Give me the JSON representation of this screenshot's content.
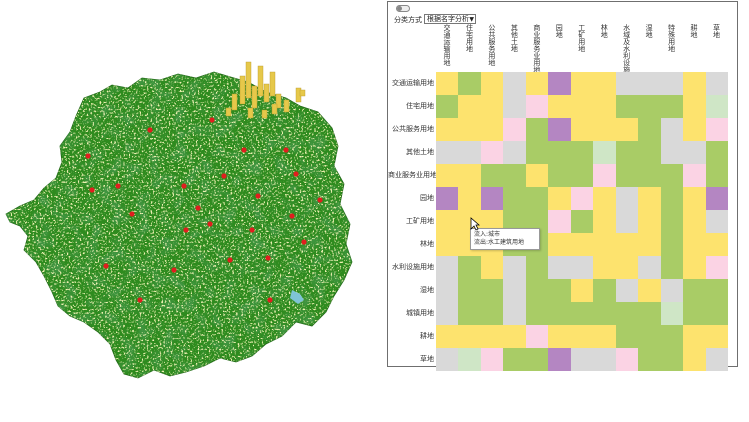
{
  "panel": {
    "classify_label": "分类方式",
    "classify_value": "根据名字分析",
    "columns": [
      "交通运输用地",
      "住宅用地",
      "公共服务用地",
      "其他土地",
      "商业服务业用地",
      "园地",
      "工矿用地",
      "林地",
      "水域及水利设施",
      "湿地",
      "特殊用地",
      "耕地",
      "草地"
    ],
    "rows": [
      "交通运输用地",
      "住宅用地",
      "公共服务用地",
      "其他土地",
      "商业服务业用地",
      "园地",
      "工矿用地",
      "林地",
      "水利设施用地",
      "湿地",
      "城镇用地",
      "耕地",
      "草地"
    ],
    "colors": {
      "yellow": "#fde36e",
      "green": "#a9cc66",
      "gray": "#d9d9d9",
      "pink": "#fbd3e4",
      "purple": "#b486c2",
      "mint": "#cfe6c6",
      "white": "#ffffff"
    },
    "matrix": [
      [
        "yellow",
        "green",
        "yellow",
        "gray",
        "yellow",
        "purple",
        "yellow",
        "yellow",
        "gray",
        "gray",
        "gray",
        "yellow",
        "gray"
      ],
      [
        "green",
        "yellow",
        "yellow",
        "gray",
        "pink",
        "yellow",
        "yellow",
        "yellow",
        "green",
        "green",
        "green",
        "yellow",
        "mint"
      ],
      [
        "yellow",
        "yellow",
        "yellow",
        "pink",
        "green",
        "purple",
        "yellow",
        "yellow",
        "yellow",
        "green",
        "gray",
        "yellow",
        "pink"
      ],
      [
        "gray",
        "gray",
        "pink",
        "gray",
        "green",
        "green",
        "green",
        "mint",
        "green",
        "green",
        "gray",
        "gray",
        "green"
      ],
      [
        "yellow",
        "yellow",
        "green",
        "green",
        "yellow",
        "green",
        "green",
        "pink",
        "green",
        "green",
        "green",
        "pink",
        "green"
      ],
      [
        "purple",
        "yellow",
        "purple",
        "green",
        "green",
        "yellow",
        "pink",
        "yellow",
        "gray",
        "yellow",
        "green",
        "yellow",
        "purple"
      ],
      [
        "yellow",
        "yellow",
        "yellow",
        "green",
        "green",
        "pink",
        "green",
        "yellow",
        "gray",
        "yellow",
        "green",
        "yellow",
        "gray"
      ],
      [
        "yellow",
        "yellow",
        "yellow",
        "green",
        "green",
        "yellow",
        "yellow",
        "yellow",
        "yellow",
        "yellow",
        "green",
        "yellow",
        "yellow"
      ],
      [
        "gray",
        "green",
        "yellow",
        "gray",
        "green",
        "gray",
        "gray",
        "yellow",
        "yellow",
        "gray",
        "green",
        "yellow",
        "pink"
      ],
      [
        "gray",
        "green",
        "green",
        "gray",
        "green",
        "green",
        "yellow",
        "green",
        "gray",
        "yellow",
        "gray",
        "green",
        "green"
      ],
      [
        "gray",
        "green",
        "green",
        "gray",
        "green",
        "green",
        "green",
        "green",
        "green",
        "green",
        "mint",
        "green",
        "green"
      ],
      [
        "yellow",
        "yellow",
        "yellow",
        "yellow",
        "pink",
        "yellow",
        "yellow",
        "yellow",
        "green",
        "green",
        "green",
        "yellow",
        "yellow"
      ],
      [
        "gray",
        "mint",
        "pink",
        "green",
        "green",
        "purple",
        "gray",
        "gray",
        "pink",
        "green",
        "green",
        "yellow",
        "gray"
      ]
    ]
  },
  "tooltip": {
    "line1": "流入:城市",
    "line2": "流出:水工建筑用地"
  },
  "map": {
    "land_color": "#2e8b1e",
    "light_color": "#c8d96a",
    "hot_color": "#e01e1e",
    "bar_color": "#e6c84a"
  }
}
